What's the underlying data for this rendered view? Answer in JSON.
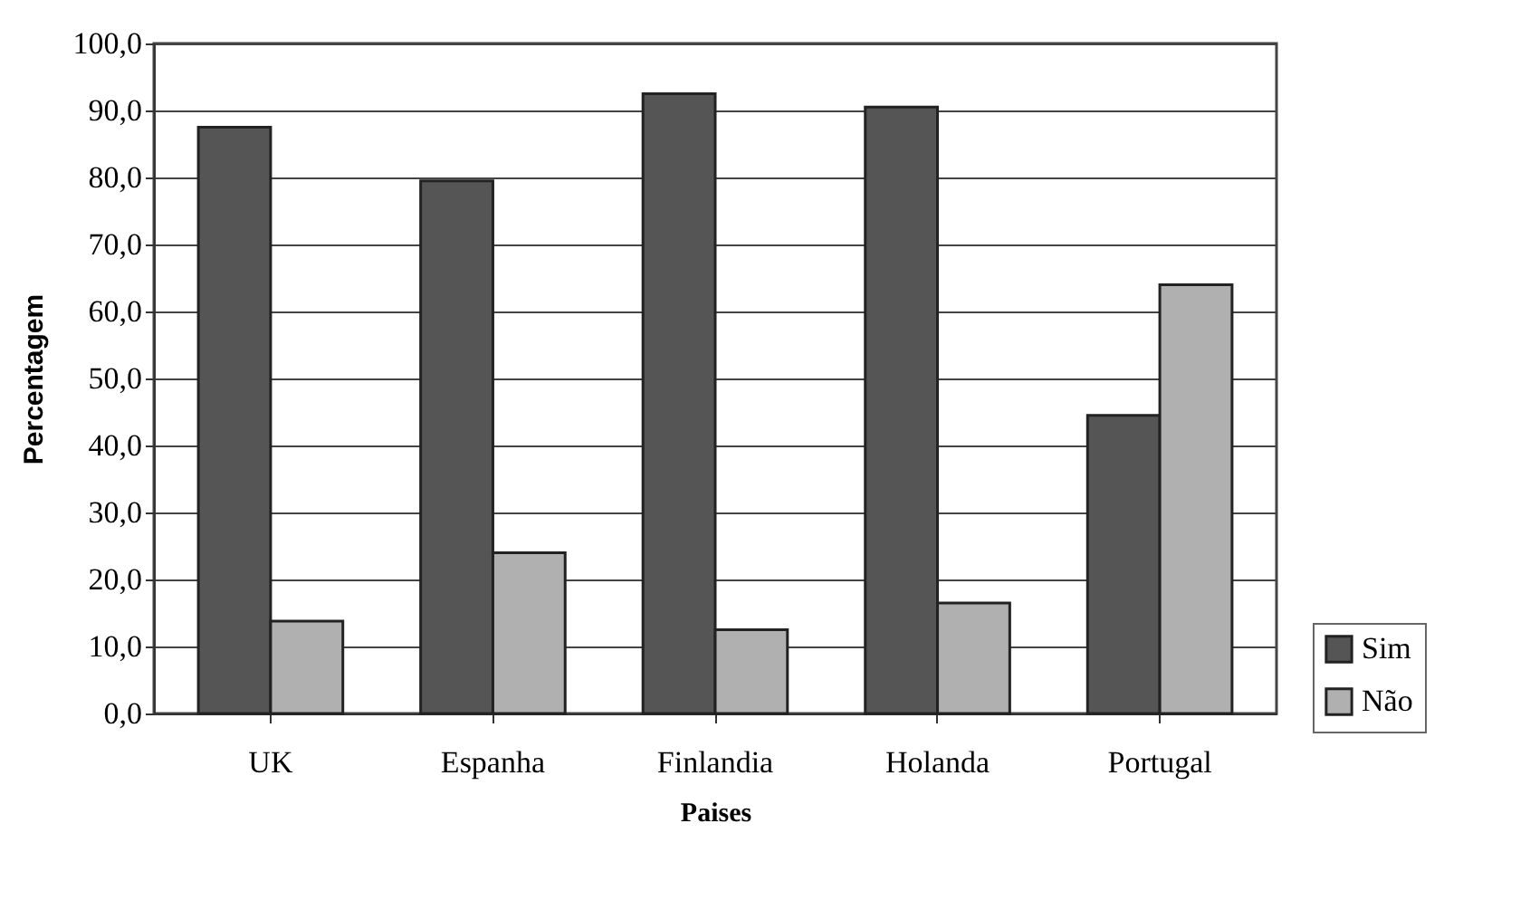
{
  "chart_data": {
    "type": "bar",
    "xlabel": "Paises",
    "ylabel": "Percentagem",
    "categories": [
      "UK",
      "Espanha",
      "Finlandia",
      "Holanda",
      "Portugal"
    ],
    "series": [
      {
        "name": "Sim",
        "color": "#555555",
        "values": [
          87.5,
          79.5,
          92.5,
          90.5,
          44.5
        ]
      },
      {
        "name": "Não",
        "color": "#b0b0b0",
        "values": [
          13.8,
          24.0,
          12.5,
          16.5,
          64.0
        ]
      }
    ],
    "ylim": [
      0,
      100
    ],
    "yticks": [
      {
        "value": 0,
        "label": "0,0"
      },
      {
        "value": 10,
        "label": "10,0"
      },
      {
        "value": 20,
        "label": "20,0"
      },
      {
        "value": 30,
        "label": "30,0"
      },
      {
        "value": 40,
        "label": "40,0"
      },
      {
        "value": 50,
        "label": "50,0"
      },
      {
        "value": 60,
        "label": "60,0"
      },
      {
        "value": 70,
        "label": "70,0"
      },
      {
        "value": 80,
        "label": "80,0"
      },
      {
        "value": 90,
        "label": "90,0"
      },
      {
        "value": 100,
        "label": "100,0"
      }
    ],
    "grid": "y",
    "legend": "bottom right"
  }
}
